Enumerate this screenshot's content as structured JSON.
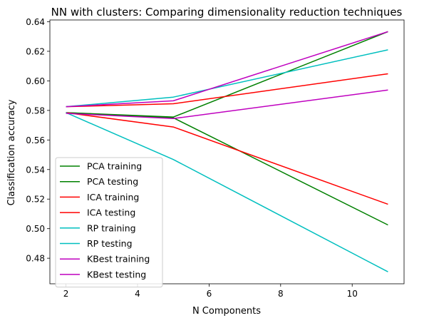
{
  "chart_data": {
    "type": "line",
    "title": "NN with clusters: Comparing dimensionality reduction techniques",
    "xlabel": "N Components",
    "ylabel": "Classification accuracy",
    "xlim": [
      1.55,
      11.45
    ],
    "ylim": [
      0.4627,
      0.6412
    ],
    "xticks": [
      2,
      4,
      6,
      8,
      10
    ],
    "xtick_labels": [
      "2",
      "4",
      "6",
      "8",
      "10"
    ],
    "yticks": [
      0.48,
      0.5,
      0.52,
      0.54,
      0.56,
      0.58,
      0.6,
      0.62,
      0.64
    ],
    "ytick_labels": [
      "0.48",
      "0.50",
      "0.52",
      "0.54",
      "0.56",
      "0.58",
      "0.60",
      "0.62",
      "0.64"
    ],
    "grid": false,
    "legend_position": "lower-left",
    "x": [
      2,
      5,
      11
    ],
    "series": [
      {
        "name": "PCA training",
        "color": "#008000",
        "values": [
          0.5785,
          0.5755,
          0.6333
        ]
      },
      {
        "name": "PCA testing",
        "color": "#008000",
        "values": [
          0.5785,
          0.575,
          0.5025
        ]
      },
      {
        "name": "ICA training",
        "color": "#ff0000",
        "values": [
          0.5825,
          0.5845,
          0.6048
        ]
      },
      {
        "name": "ICA testing",
        "color": "#ff0000",
        "values": [
          0.5785,
          0.5688,
          0.5165
        ]
      },
      {
        "name": "RP training",
        "color": "#00bfbf",
        "values": [
          0.5825,
          0.589,
          0.621
        ]
      },
      {
        "name": "RP testing",
        "color": "#00bfbf",
        "values": [
          0.5785,
          0.5468,
          0.4708
        ]
      },
      {
        "name": "KBest training",
        "color": "#bf00bf",
        "values": [
          0.5825,
          0.5865,
          0.6333
        ]
      },
      {
        "name": "KBest testing",
        "color": "#bf00bf",
        "values": [
          0.578,
          0.5745,
          0.5938
        ]
      }
    ]
  }
}
